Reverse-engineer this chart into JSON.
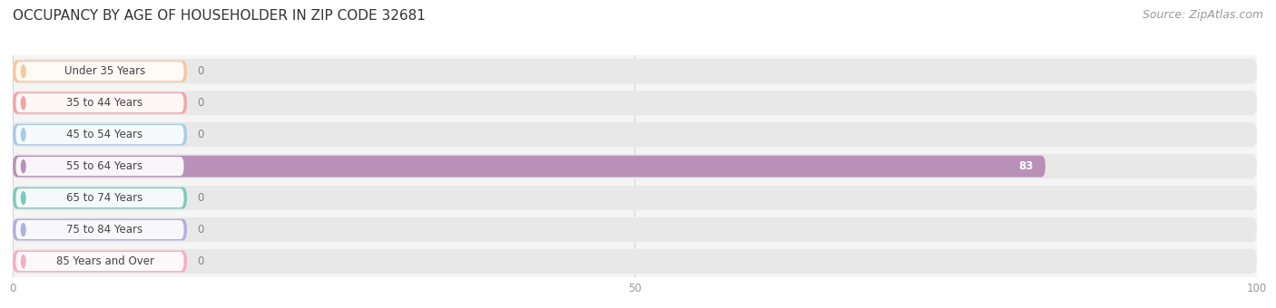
{
  "title": "OCCUPANCY BY AGE OF HOUSEHOLDER IN ZIP CODE 32681",
  "source": "Source: ZipAtlas.com",
  "categories": [
    "Under 35 Years",
    "35 to 44 Years",
    "45 to 54 Years",
    "55 to 64 Years",
    "65 to 74 Years",
    "75 to 84 Years",
    "85 Years and Over"
  ],
  "values": [
    0,
    0,
    0,
    83,
    0,
    0,
    0
  ],
  "bar_colors": [
    "#f5c89a",
    "#f2a5a5",
    "#a8cce8",
    "#b990b8",
    "#7ec9be",
    "#b0b0e0",
    "#f2b0c4"
  ],
  "background_color": "#ffffff",
  "plot_bg_color": "#f5f5f5",
  "bar_bg_color": "#e8e8e8",
  "xlim": [
    0,
    100
  ],
  "xticks": [
    0,
    50,
    100
  ],
  "title_fontsize": 11,
  "source_fontsize": 9,
  "value_label_fontsize": 8.5,
  "cat_label_fontsize": 8.5,
  "figsize": [
    14.06,
    3.4
  ],
  "dpi": 100
}
